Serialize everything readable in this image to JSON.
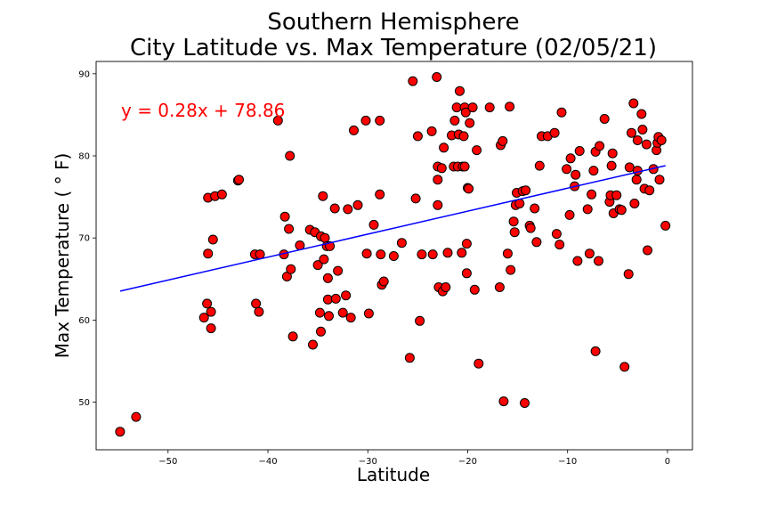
{
  "chart_data": {
    "type": "scatter",
    "title": "Southern Hemisphere",
    "subtitle": "City Latitude vs. Max Temperature (02/05/21)",
    "xlabel": "Latitude",
    "ylabel": "Max Temperature ( ° F)",
    "xlim": [
      -57.2,
      2.5
    ],
    "ylim": [
      44.2,
      91.5
    ],
    "xticks": [
      -50,
      -40,
      -30,
      -20,
      -10,
      0
    ],
    "yticks": [
      50,
      60,
      70,
      80,
      90
    ],
    "grid": false,
    "regression": {
      "equation": "y = 0.28x + 78.86",
      "slope": 0.28,
      "intercept": 78.86,
      "x_range": [
        -54.8,
        -0.2
      ],
      "color": "#0000ff"
    },
    "marker": {
      "fill": "#ff0000",
      "edge": "#000000"
    },
    "points": [
      [
        -54.8,
        46.4
      ],
      [
        -53.2,
        48.2
      ],
      [
        -46.4,
        60.3
      ],
      [
        -46.1,
        62.0
      ],
      [
        -46.0,
        68.1
      ],
      [
        -46.0,
        74.9
      ],
      [
        -45.7,
        61.0
      ],
      [
        -45.7,
        59.0
      ],
      [
        -45.5,
        69.8
      ],
      [
        -45.3,
        75.1
      ],
      [
        -44.6,
        75.3
      ],
      [
        -43.0,
        77.0
      ],
      [
        -42.9,
        77.1
      ],
      [
        -41.3,
        68.0
      ],
      [
        -41.2,
        62.0
      ],
      [
        -40.9,
        61.0
      ],
      [
        -40.8,
        68.0
      ],
      [
        -39.0,
        84.3
      ],
      [
        -38.4,
        68.0
      ],
      [
        -38.3,
        72.6
      ],
      [
        -38.1,
        65.3
      ],
      [
        -37.9,
        71.1
      ],
      [
        -37.8,
        80.0
      ],
      [
        -37.7,
        66.2
      ],
      [
        -37.5,
        58.0
      ],
      [
        -36.8,
        69.1
      ],
      [
        -35.8,
        71.0
      ],
      [
        -35.5,
        57.0
      ],
      [
        -35.3,
        70.7
      ],
      [
        -35.0,
        66.7
      ],
      [
        -34.8,
        60.9
      ],
      [
        -34.7,
        58.6
      ],
      [
        -34.7,
        70.2
      ],
      [
        -34.5,
        75.1
      ],
      [
        -34.4,
        67.4
      ],
      [
        -34.3,
        70.0
      ],
      [
        -34.1,
        69.0
      ],
      [
        -34.0,
        62.5
      ],
      [
        -34.0,
        65.1
      ],
      [
        -33.9,
        60.5
      ],
      [
        -33.8,
        69.0
      ],
      [
        -33.3,
        73.6
      ],
      [
        -33.2,
        62.6
      ],
      [
        -33.0,
        66.0
      ],
      [
        -32.5,
        60.9
      ],
      [
        -32.2,
        63.0
      ],
      [
        -32.0,
        73.5
      ],
      [
        -31.7,
        60.3
      ],
      [
        -31.4,
        83.1
      ],
      [
        -31.0,
        74.0
      ],
      [
        -30.2,
        84.3
      ],
      [
        -30.1,
        68.1
      ],
      [
        -29.9,
        60.8
      ],
      [
        -29.4,
        71.6
      ],
      [
        -28.8,
        84.3
      ],
      [
        -28.8,
        75.3
      ],
      [
        -28.7,
        68.0
      ],
      [
        -28.6,
        64.3
      ],
      [
        -28.4,
        64.7
      ],
      [
        -27.4,
        67.8
      ],
      [
        -26.6,
        69.4
      ],
      [
        -25.8,
        55.4
      ],
      [
        -25.5,
        89.1
      ],
      [
        -25.2,
        74.8
      ],
      [
        -25.0,
        82.4
      ],
      [
        -24.8,
        59.9
      ],
      [
        -24.6,
        68.0
      ],
      [
        -23.6,
        83.0
      ],
      [
        -23.5,
        68.0
      ],
      [
        -23.1,
        89.6
      ],
      [
        -23.0,
        77.1
      ],
      [
        -23.0,
        78.7
      ],
      [
        -23.0,
        74.0
      ],
      [
        -22.9,
        64.0
      ],
      [
        -22.6,
        78.5
      ],
      [
        -22.5,
        63.5
      ],
      [
        -22.4,
        81.0
      ],
      [
        -22.2,
        64.0
      ],
      [
        -22.0,
        68.2
      ],
      [
        -21.6,
        82.5
      ],
      [
        -21.4,
        78.7
      ],
      [
        -21.3,
        84.3
      ],
      [
        -21.1,
        85.9
      ],
      [
        -21.0,
        78.7
      ],
      [
        -20.9,
        82.6
      ],
      [
        -20.8,
        87.9
      ],
      [
        -20.6,
        68.2
      ],
      [
        -20.5,
        78.7
      ],
      [
        -20.4,
        82.4
      ],
      [
        -20.3,
        78.7
      ],
      [
        -20.3,
        85.9
      ],
      [
        -20.2,
        85.3
      ],
      [
        -20.1,
        65.7
      ],
      [
        -20.1,
        69.3
      ],
      [
        -20.0,
        76.1
      ],
      [
        -19.9,
        76.0
      ],
      [
        -19.8,
        84.0
      ],
      [
        -19.5,
        85.9
      ],
      [
        -19.3,
        63.7
      ],
      [
        -19.1,
        80.7
      ],
      [
        -18.9,
        54.7
      ],
      [
        -17.8,
        85.9
      ],
      [
        -16.8,
        64.0
      ],
      [
        -16.7,
        81.3
      ],
      [
        -16.5,
        81.8
      ],
      [
        -16.4,
        50.1
      ],
      [
        -16.0,
        68.1
      ],
      [
        -15.8,
        86.0
      ],
      [
        -15.7,
        66.1
      ],
      [
        -15.4,
        72.0
      ],
      [
        -15.3,
        70.7
      ],
      [
        -15.2,
        74.0
      ],
      [
        -15.1,
        75.5
      ],
      [
        -14.8,
        74.2
      ],
      [
        -14.5,
        75.7
      ],
      [
        -14.3,
        49.9
      ],
      [
        -14.2,
        75.8
      ],
      [
        -13.8,
        71.5
      ],
      [
        -13.7,
        71.2
      ],
      [
        -13.3,
        73.6
      ],
      [
        -13.1,
        69.5
      ],
      [
        -12.8,
        78.8
      ],
      [
        -12.6,
        82.4
      ],
      [
        -12.0,
        82.4
      ],
      [
        -11.3,
        82.8
      ],
      [
        -11.1,
        70.5
      ],
      [
        -10.8,
        69.2
      ],
      [
        -10.6,
        85.3
      ],
      [
        -10.1,
        78.4
      ],
      [
        -9.8,
        72.8
      ],
      [
        -9.7,
        79.7
      ],
      [
        -9.3,
        76.3
      ],
      [
        -9.2,
        77.7
      ],
      [
        -9.0,
        67.2
      ],
      [
        -8.8,
        80.6
      ],
      [
        -8.0,
        73.5
      ],
      [
        -7.8,
        68.1
      ],
      [
        -7.6,
        75.3
      ],
      [
        -7.4,
        78.2
      ],
      [
        -7.2,
        56.2
      ],
      [
        -7.2,
        80.5
      ],
      [
        -6.9,
        67.2
      ],
      [
        -6.8,
        81.2
      ],
      [
        -6.3,
        84.5
      ],
      [
        -5.8,
        74.4
      ],
      [
        -5.7,
        75.2
      ],
      [
        -5.6,
        78.8
      ],
      [
        -5.5,
        80.3
      ],
      [
        -5.4,
        73.0
      ],
      [
        -5.1,
        75.2
      ],
      [
        -4.8,
        73.5
      ],
      [
        -4.6,
        73.4
      ],
      [
        -4.3,
        54.3
      ],
      [
        -3.9,
        65.6
      ],
      [
        -3.8,
        78.6
      ],
      [
        -3.6,
        82.8
      ],
      [
        -3.4,
        86.4
      ],
      [
        -3.3,
        74.2
      ],
      [
        -3.1,
        77.1
      ],
      [
        -3.0,
        78.2
      ],
      [
        -3.0,
        81.9
      ],
      [
        -2.6,
        85.1
      ],
      [
        -2.5,
        83.2
      ],
      [
        -2.3,
        76.0
      ],
      [
        -2.1,
        81.4
      ],
      [
        -2.0,
        68.5
      ],
      [
        -1.8,
        75.8
      ],
      [
        -1.4,
        78.4
      ],
      [
        -1.1,
        80.7
      ],
      [
        -1.0,
        81.6
      ],
      [
        -0.9,
        82.3
      ],
      [
        -0.8,
        77.1
      ],
      [
        -0.6,
        81.9
      ],
      [
        -0.2,
        71.5
      ]
    ]
  }
}
